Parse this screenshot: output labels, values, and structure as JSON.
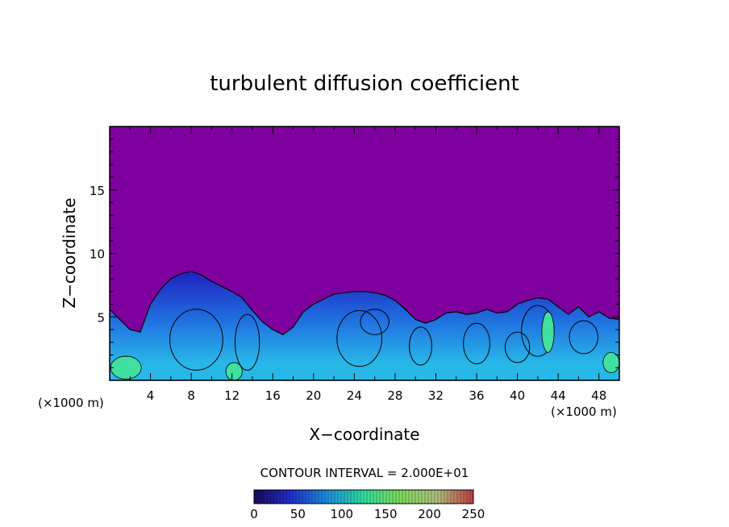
{
  "chart_data": {
    "type": "heatmap",
    "title": "turbulent diffusion coefficient",
    "xlabel": "X−coordinate",
    "ylabel": "Z−coordinate",
    "x_unit_left": "(×1000 m)",
    "x_unit_right": "(×1000 m)",
    "xlim": [
      0,
      50
    ],
    "ylim": [
      0,
      20
    ],
    "x_ticks": [
      4,
      8,
      12,
      16,
      20,
      24,
      28,
      32,
      36,
      40,
      44,
      48
    ],
    "y_ticks": [
      5,
      10,
      15
    ],
    "contour_interval_text": "CONTOUR INTERVAL = 2.000E+01",
    "colorbar": {
      "min": 0,
      "max": 250,
      "ticks": [
        0,
        50,
        100,
        150,
        200,
        250
      ],
      "colors": [
        "#1a0a5a",
        "#1f2fd0",
        "#1e8fe0",
        "#2fe0a0",
        "#7fdc5a",
        "#b0c080",
        "#c04040"
      ]
    },
    "background_value_color": "#7e009f",
    "field_colors": {
      "low": "#2020c0",
      "mid": "#2070e0",
      "high": "#28b8e8",
      "peak": "#40e0a0",
      "contour": "#000000"
    },
    "boundary_top_km": [
      [
        0,
        5.6
      ],
      [
        1,
        4.8
      ],
      [
        2,
        4.0
      ],
      [
        3,
        3.8
      ],
      [
        4,
        6.0
      ],
      [
        5,
        7.2
      ],
      [
        6,
        8.0
      ],
      [
        7,
        8.4
      ],
      [
        8,
        8.6
      ],
      [
        9,
        8.3
      ],
      [
        10,
        7.8
      ],
      [
        11,
        7.4
      ],
      [
        12,
        7.0
      ],
      [
        13,
        6.5
      ],
      [
        14,
        5.5
      ],
      [
        15,
        4.6
      ],
      [
        16,
        4.0
      ],
      [
        17,
        3.6
      ],
      [
        18,
        4.2
      ],
      [
        19,
        5.4
      ],
      [
        20,
        6.0
      ],
      [
        21,
        6.4
      ],
      [
        22,
        6.8
      ],
      [
        23,
        6.9
      ],
      [
        24,
        7.0
      ],
      [
        25,
        7.0
      ],
      [
        26,
        6.9
      ],
      [
        27,
        6.7
      ],
      [
        28,
        6.3
      ],
      [
        29,
        5.6
      ],
      [
        30,
        4.8
      ],
      [
        31,
        4.5
      ],
      [
        32,
        4.8
      ],
      [
        33,
        5.3
      ],
      [
        34,
        5.4
      ],
      [
        35,
        5.2
      ],
      [
        36,
        5.3
      ],
      [
        37,
        5.6
      ],
      [
        38,
        5.3
      ],
      [
        39,
        5.4
      ],
      [
        40,
        6.0
      ],
      [
        41,
        6.3
      ],
      [
        42,
        6.5
      ],
      [
        43,
        6.4
      ],
      [
        44,
        5.8
      ],
      [
        45,
        5.2
      ],
      [
        46,
        5.8
      ],
      [
        47,
        5.0
      ],
      [
        48,
        5.4
      ],
      [
        49,
        4.9
      ],
      [
        50,
        4.8
      ]
    ]
  }
}
